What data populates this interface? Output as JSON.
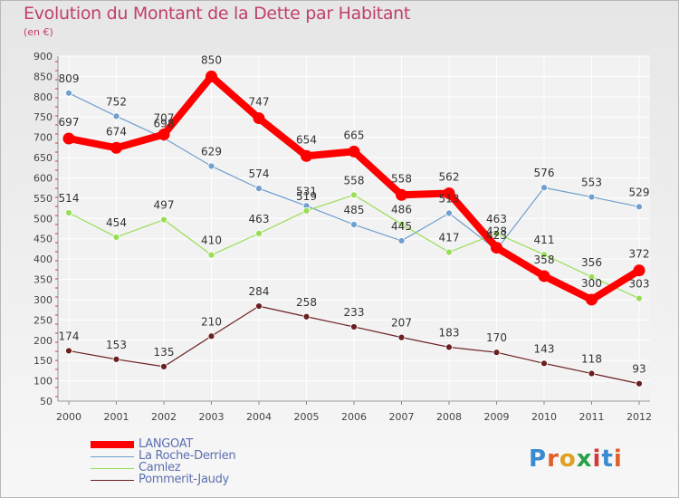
{
  "header": {
    "title": "Evolution du Montant de la Dette par Habitant",
    "subtitle": "(en €)"
  },
  "logo": {
    "text": "Proxiti",
    "colors": [
      "#3a8ad0",
      "#e0602a",
      "#e0a020",
      "#2aa04a",
      "#d03a3a",
      "#3a8ad0",
      "#e0602a"
    ]
  },
  "chart_data": {
    "type": "line",
    "title": "Evolution du Montant de la Dette par Habitant",
    "subtitle": "(en €)",
    "xlabel": "",
    "ylabel": "",
    "x": [
      "2000",
      "2001",
      "2002",
      "2003",
      "2004",
      "2005",
      "2006",
      "2007",
      "2008",
      "2009",
      "2010",
      "2011",
      "2012"
    ],
    "ylim": [
      50,
      900
    ],
    "yticks": [
      50,
      100,
      150,
      200,
      250,
      300,
      350,
      400,
      450,
      500,
      550,
      600,
      650,
      700,
      750,
      800,
      850,
      900
    ],
    "grid": true,
    "legend_position": "bottom-left",
    "series": [
      {
        "name": "LANGOAT",
        "color": "#ff0000",
        "values": [
          697,
          674,
          707,
          850,
          747,
          654,
          665,
          558,
          562,
          428,
          358,
          300,
          372
        ]
      },
      {
        "name": "La Roche-Derrien",
        "color": "#6f9fcf",
        "values": [
          809,
          752,
          698,
          629,
          574,
          531,
          485,
          445,
          513,
          423,
          576,
          553,
          529
        ]
      },
      {
        "name": "Camlez",
        "color": "#99dd55",
        "values": [
          514,
          454,
          497,
          410,
          463,
          519,
          558,
          486,
          417,
          463,
          411,
          356,
          303
        ]
      },
      {
        "name": "Pommerit-Jaudy",
        "color": "#6b1f1f",
        "values": [
          174,
          153,
          135,
          210,
          284,
          258,
          233,
          207,
          183,
          170,
          143,
          118,
          93
        ]
      }
    ],
    "data_labels": [
      [
        "697",
        "674",
        "707",
        "850",
        "747",
        "654",
        "665",
        "558",
        "562",
        "428",
        "358",
        "300",
        "372"
      ],
      [
        "809",
        "752",
        "698",
        "629",
        "574",
        "531",
        "485",
        "445",
        "513",
        "423",
        "576",
        "553",
        "529"
      ],
      [
        "514",
        "454",
        "497",
        "410",
        "463",
        "519",
        "558",
        "486",
        "417",
        "463",
        "411",
        "356",
        "303"
      ],
      [
        "174",
        "153",
        "135",
        "210",
        "284",
        "258",
        "233",
        "207",
        "183",
        "170",
        "143",
        "118",
        "93"
      ]
    ]
  }
}
